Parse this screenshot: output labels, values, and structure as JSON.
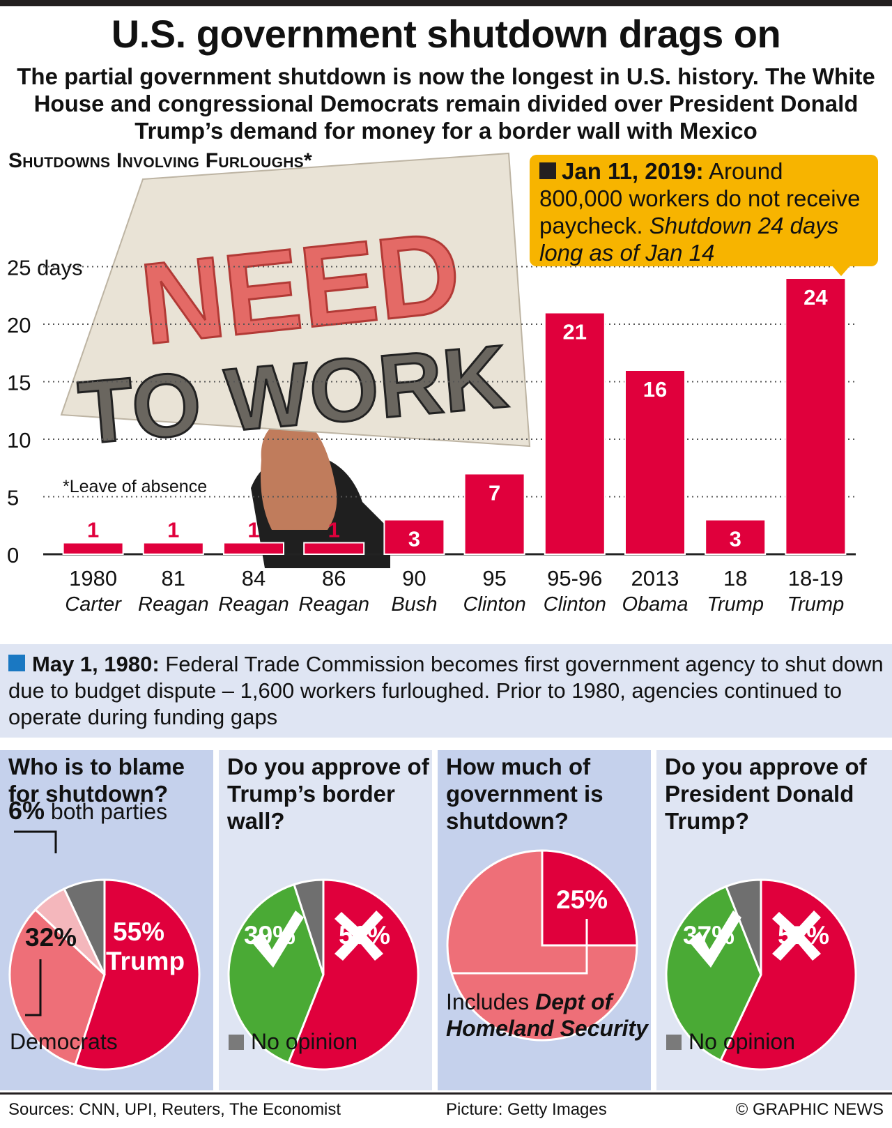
{
  "title": "U.S. government shutdown drags on",
  "subtitle": "The partial government shutdown is now the longest in U.S. history. The White House and congressional Democrats remain divided over President Donald Trump’s demand for money for a border wall with Mexico",
  "chart_heading": "Shutdowns Involving Furloughs*",
  "footnote": "*Leave of absence",
  "photo_sign": {
    "line1": "NEED",
    "line2": "TO WORK"
  },
  "callout": {
    "date": "Jan 11, 2019:",
    "text": "Around 800,000 workers do not receive paycheck.",
    "italic": "Shutdown 24 days long as of Jan 14"
  },
  "chart_data": {
    "type": "bar",
    "categories": [
      "1980",
      "81",
      "84",
      "86",
      "90",
      "95",
      "95-96",
      "2013",
      "18",
      "18-19"
    ],
    "presidents": [
      "Carter",
      "Reagan",
      "Reagan",
      "Reagan",
      "Bush",
      "Clinton",
      "Clinton",
      "Obama",
      "Trump",
      "Trump"
    ],
    "values": [
      1,
      1,
      1,
      1,
      3,
      7,
      21,
      16,
      3,
      24
    ],
    "y_ticks": [
      "0",
      "5",
      "10",
      "15",
      "20",
      "25 days"
    ],
    "ylim": [
      0,
      25
    ],
    "grid": "dotted",
    "bar_color": "#e0003c"
  },
  "note": {
    "date": "May 1, 1980:",
    "text": "Federal Trade Commission becomes first government agency to shut down due to budget dispute – 1,600 workers furloughed. Prior to 1980, agencies continued to operate during funding gaps"
  },
  "polls": [
    {
      "question": "Who is to blame for shutdown?",
      "top_pct": "6%",
      "top_label": "both parties",
      "label_dem_pct": "32%",
      "label_trump_pct": "55%",
      "label_trump": "Trump",
      "bottom_label": "Democrats",
      "slices": [
        {
          "name": "Trump",
          "value": 55,
          "color": "#e0003c"
        },
        {
          "name": "Democrats",
          "value": 32,
          "color": "#ee6f78"
        },
        {
          "name": "Both parties",
          "value": 6,
          "color": "#f4b7bc"
        },
        {
          "name": "Other",
          "value": 7,
          "color": "#6f6f6f"
        }
      ]
    },
    {
      "question": "Do you approve of Trump’s border wall?",
      "yes_pct": "39%",
      "no_pct": "56%",
      "legend": "No opinion",
      "slices": [
        {
          "name": "No",
          "value": 56,
          "color": "#e0003c"
        },
        {
          "name": "Yes",
          "value": 39,
          "color": "#4aaa35"
        },
        {
          "name": "No opinion",
          "value": 5,
          "color": "#6f6f6f"
        }
      ]
    },
    {
      "question": "How much of government is shutdown?",
      "pct": "25%",
      "caption_plain": "Includes",
      "caption_bold": "Dept of Homeland Security",
      "slices": [
        {
          "name": "Shutdown",
          "value": 25,
          "color": "#e0003c"
        },
        {
          "name": "Open",
          "value": 75,
          "color": "#ee6f78"
        }
      ]
    },
    {
      "question": "Do you approve of President Donald Trump?",
      "yes_pct": "37%",
      "no_pct": "57%",
      "legend": "No opinion",
      "slices": [
        {
          "name": "No",
          "value": 57,
          "color": "#e0003c"
        },
        {
          "name": "Yes",
          "value": 37,
          "color": "#4aaa35"
        },
        {
          "name": "No opinion",
          "value": 6,
          "color": "#6f6f6f"
        }
      ]
    }
  ],
  "footer": {
    "sources": "Sources: CNN, UPI, Reuters, The Economist",
    "picture": "Picture: Getty Images",
    "credit": "© GRAPHIC NEWS"
  }
}
